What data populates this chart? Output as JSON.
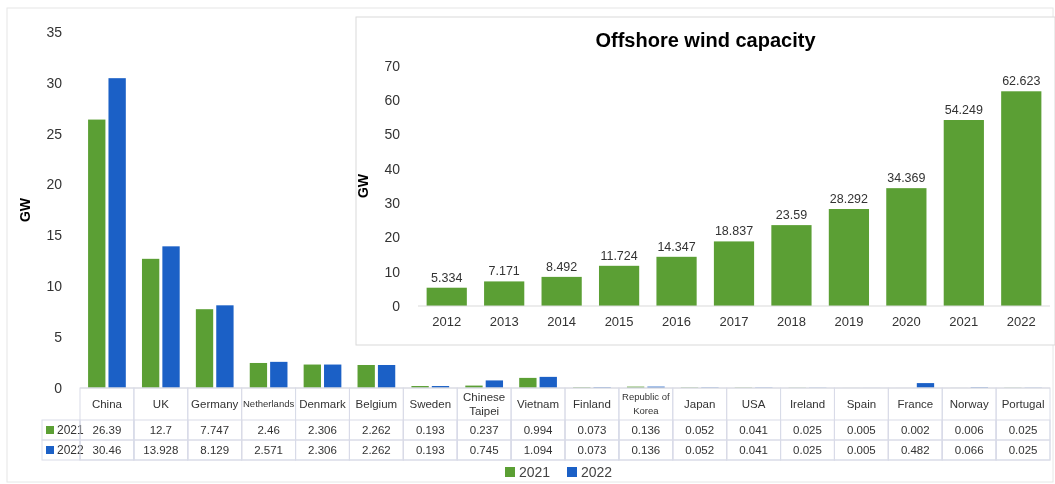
{
  "chart_data": [
    {
      "type": "bar",
      "ylabel": "GW",
      "categories": [
        "China",
        "UK",
        "Germany",
        "Netherlands",
        "Denmark",
        "Belgium",
        "Sweden",
        "Chinese Taipei",
        "Vietnam",
        "Finland",
        "Republic of Korea",
        "Japan",
        "USA",
        "Ireland",
        "Spain",
        "France",
        "Norway",
        "Portugal"
      ],
      "series": [
        {
          "name": "2021",
          "color": "#5b9f34",
          "values": [
            26.39,
            12.7,
            7.747,
            2.46,
            2.306,
            2.262,
            0.193,
            0.237,
            0.994,
            0.073,
            0.136,
            0.052,
            0.041,
            0.025,
            0.005,
            0.002,
            0.006,
            0.025
          ]
        },
        {
          "name": "2022",
          "color": "#1b60c6",
          "values": [
            30.46,
            13.928,
            8.129,
            2.571,
            2.306,
            2.262,
            0.193,
            0.745,
            1.094,
            0.073,
            0.136,
            0.052,
            0.041,
            0.025,
            0.005,
            0.482,
            0.066,
            0.025
          ]
        }
      ],
      "ylim": [
        0,
        35
      ],
      "yticks": [
        0,
        5,
        10,
        15,
        20,
        25,
        30,
        35
      ],
      "grid": false,
      "legend": "bottom",
      "data_labels": true
    },
    {
      "type": "bar",
      "title": "Offshore wind capacity",
      "ylabel": "GW",
      "categories": [
        "2012",
        "2013",
        "2014",
        "2015",
        "2016",
        "2017",
        "2018",
        "2019",
        "2020",
        "2021",
        "2022"
      ],
      "values": [
        5.334,
        7.171,
        8.492,
        11.724,
        14.347,
        18.837,
        23.59,
        28.292,
        34.369,
        54.249,
        62.623
      ],
      "color": "#5b9f34",
      "ylim": [
        0,
        70
      ],
      "yticks": [
        0,
        10,
        20,
        30,
        40,
        50,
        60,
        70
      ],
      "grid": false,
      "data_labels": true
    }
  ]
}
